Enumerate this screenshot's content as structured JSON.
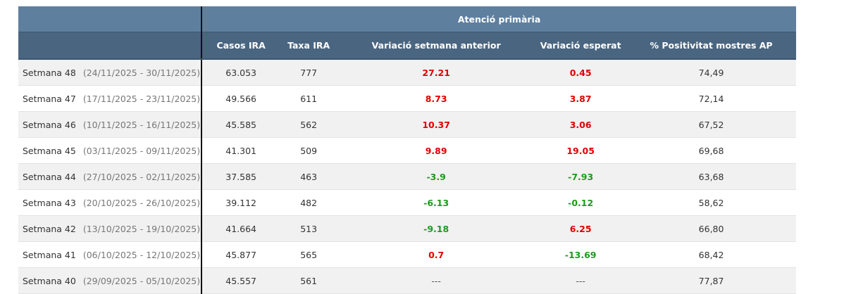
{
  "header": {
    "group": "Atenció primària",
    "columns": [
      "Casos IRA",
      "Taxa IRA",
      "Variació setmana anterior",
      "Variació esperat",
      "% Positivitat mostres AP"
    ]
  },
  "colors": {
    "positive": "#e00000",
    "negative": "#1d9a1d",
    "header_top": "#5f7f9e",
    "header_bottom": "#4a6580"
  },
  "rows": [
    {
      "week": "Setmana 48",
      "dates": "(24/11/2025 - 30/11/2025)",
      "casos": "63.053",
      "taxa": "777",
      "var_prev": "27.21",
      "var_exp": "0.45",
      "positivitat": "74,49"
    },
    {
      "week": "Setmana 47",
      "dates": "(17/11/2025 - 23/11/2025)",
      "casos": "49.566",
      "taxa": "611",
      "var_prev": "8.73",
      "var_exp": "3.87",
      "positivitat": "72,14"
    },
    {
      "week": "Setmana 46",
      "dates": "(10/11/2025 - 16/11/2025)",
      "casos": "45.585",
      "taxa": "562",
      "var_prev": "10.37",
      "var_exp": "3.06",
      "positivitat": "67,52"
    },
    {
      "week": "Setmana 45",
      "dates": "(03/11/2025 - 09/11/2025)",
      "casos": "41.301",
      "taxa": "509",
      "var_prev": "9.89",
      "var_exp": "19.05",
      "positivitat": "69,68"
    },
    {
      "week": "Setmana 44",
      "dates": "(27/10/2025 - 02/11/2025)",
      "casos": "37.585",
      "taxa": "463",
      "var_prev": "-3.9",
      "var_exp": "-7.93",
      "positivitat": "63,68"
    },
    {
      "week": "Setmana 43",
      "dates": "(20/10/2025 - 26/10/2025)",
      "casos": "39.112",
      "taxa": "482",
      "var_prev": "-6.13",
      "var_exp": "-0.12",
      "positivitat": "58,62"
    },
    {
      "week": "Setmana 42",
      "dates": "(13/10/2025 - 19/10/2025)",
      "casos": "41.664",
      "taxa": "513",
      "var_prev": "-9.18",
      "var_exp": "6.25",
      "positivitat": "66,80"
    },
    {
      "week": "Setmana 41",
      "dates": "(06/10/2025 - 12/10/2025)",
      "casos": "45.877",
      "taxa": "565",
      "var_prev": "0.7",
      "var_exp": "-13.69",
      "positivitat": "68,42"
    },
    {
      "week": "Setmana 40",
      "dates": "(29/09/2025 - 05/10/2025)",
      "casos": "45.557",
      "taxa": "561",
      "var_prev": "---",
      "var_exp": "---",
      "positivitat": "77,87"
    }
  ]
}
